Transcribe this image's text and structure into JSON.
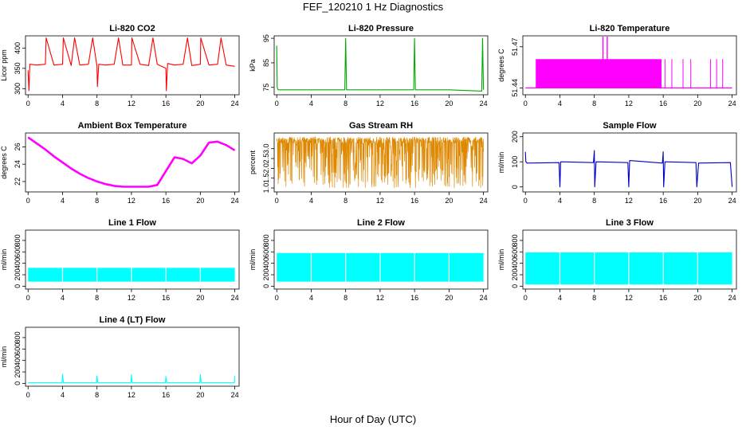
{
  "figure": {
    "title": "FEF_120210  1 Hz Diagnostics",
    "xlabel": "Hour of Day (UTC)"
  },
  "chart_data": [
    {
      "type": "line",
      "title": "Li-820 CO2",
      "ylabel": "Licor ppm",
      "color": "#ff0000",
      "pattern": "spiky",
      "x_ticks": [
        0,
        4,
        8,
        12,
        16,
        20,
        24
      ],
      "y_ticks": [
        "300",
        "350",
        "400"
      ],
      "y_tick_values": [
        300,
        350,
        400
      ],
      "xlim": [
        -0.3,
        24.5
      ],
      "ylim": [
        285,
        430
      ],
      "x": [
        0,
        0.1,
        0.2,
        1,
        2,
        2.1,
        3,
        4,
        4.1,
        5,
        5.4,
        6,
        7,
        7.5,
        8,
        8.05,
        8.2,
        9,
        10,
        10.5,
        11,
        12,
        12.05,
        13,
        14,
        14.5,
        15,
        16,
        16.05,
        16.2,
        17,
        18,
        18.5,
        19,
        20,
        20.05,
        21,
        22,
        22.4,
        23,
        24
      ],
      "y": [
        345,
        295,
        360,
        358,
        360,
        425,
        358,
        360,
        425,
        357,
        425,
        358,
        360,
        425,
        355,
        305,
        360,
        358,
        360,
        425,
        358,
        358,
        425,
        360,
        357,
        425,
        360,
        350,
        295,
        362,
        358,
        360,
        425,
        357,
        360,
        425,
        358,
        360,
        425,
        358,
        355
      ]
    },
    {
      "type": "line",
      "title": "Li-820 Pressure",
      "ylabel": "kPa",
      "color": "#00aa00",
      "pattern": "spiky",
      "x_ticks": [
        0,
        4,
        8,
        12,
        16,
        20,
        24
      ],
      "y_ticks": [
        "75",
        "85",
        "95"
      ],
      "y_tick_values": [
        75,
        85,
        95
      ],
      "xlim": [
        -0.3,
        24.5
      ],
      "ylim": [
        72,
        96
      ],
      "x": [
        0,
        0.05,
        0.15,
        1,
        4,
        7.9,
        8,
        8.1,
        10,
        12,
        15.9,
        16,
        16.1,
        18,
        20,
        23.8,
        23.9,
        24
      ],
      "y": [
        92,
        75,
        74,
        74,
        74,
        74,
        95,
        74,
        74,
        74,
        74,
        95,
        74,
        74,
        74,
        73.5,
        95,
        74
      ]
    },
    {
      "type": "line",
      "title": "Li-820 Temperature",
      "ylabel": "degrees C",
      "color": "#ff00ff",
      "pattern": "band",
      "x_ticks": [
        0,
        4,
        8,
        12,
        16,
        20,
        24
      ],
      "y_ticks": [
        "51.44",
        "51.47"
      ],
      "y_tick_values": [
        51.44,
        51.47
      ],
      "xlim": [
        -0.3,
        24.5
      ],
      "ylim": [
        51.435,
        51.478
      ],
      "band_start": 1.2,
      "band_end": 15.8,
      "band_low": 51.44,
      "band_high": 51.461,
      "spikes_x": [
        9.0,
        9.5
      ],
      "spikes_y": 51.478,
      "x": [
        0,
        1.2,
        15.8,
        24
      ],
      "y": [
        51.44,
        51.461,
        51.461,
        51.44
      ]
    },
    {
      "type": "line",
      "title": "Ambient Box Temperature",
      "ylabel": "degrees C",
      "color": "#ff00ff",
      "pattern": "thick",
      "x_ticks": [
        0,
        4,
        8,
        12,
        16,
        20,
        24
      ],
      "y_ticks": [
        "22",
        "24",
        "26"
      ],
      "y_tick_values": [
        22,
        24,
        26
      ],
      "xlim": [
        -0.3,
        24.5
      ],
      "ylim": [
        20.8,
        27.6
      ],
      "x": [
        0,
        1,
        2,
        3,
        4,
        5,
        6,
        7,
        8,
        9,
        10,
        11,
        12,
        13,
        14,
        15,
        16,
        17,
        18,
        19,
        20,
        21,
        22,
        23,
        24
      ],
      "y": [
        27.1,
        26.4,
        25.7,
        24.9,
        24.2,
        23.5,
        22.9,
        22.4,
        22.0,
        21.7,
        21.5,
        21.4,
        21.4,
        21.4,
        21.4,
        21.6,
        23.2,
        24.8,
        24.6,
        24.1,
        25.0,
        26.5,
        26.6,
        26.2,
        25.6
      ]
    },
    {
      "type": "line",
      "title": "Gas Stream RH",
      "ylabel": "percent",
      "color": "#dd8800",
      "pattern": "noise",
      "noise_low": 1.0,
      "noise_high": 3.6,
      "x_ticks": [
        0,
        4,
        8,
        12,
        16,
        20,
        24
      ],
      "y_ticks": [
        "1.0",
        "1.5",
        "2.0",
        "2.5",
        "3.0"
      ],
      "y_tick_values": [
        1.0,
        1.5,
        2.0,
        2.5,
        3.0
      ],
      "xlim": [
        -0.3,
        24.5
      ],
      "ylim": [
        0.8,
        3.8
      ],
      "x": [
        0,
        24
      ],
      "y": [
        3.5,
        3.5
      ]
    },
    {
      "type": "line",
      "title": "Sample Flow",
      "ylabel": "ml/min",
      "color": "#0000cc",
      "pattern": "spiky",
      "x_ticks": [
        0,
        4,
        8,
        12,
        16,
        20,
        24
      ],
      "y_ticks": [
        "0",
        "100",
        "200"
      ],
      "y_tick_values": [
        0,
        100,
        200
      ],
      "xlim": [
        -0.3,
        24.5
      ],
      "ylim": [
        -20,
        215
      ],
      "x": [
        0,
        0.05,
        0.2,
        3.9,
        4,
        4.1,
        7.9,
        8,
        8.05,
        8.2,
        11.9,
        12,
        12.1,
        15.9,
        16,
        16.05,
        16.2,
        19.8,
        19.9,
        20.1,
        23.8,
        24
      ],
      "y": [
        140,
        100,
        95,
        97,
        0,
        100,
        97,
        145,
        0,
        100,
        97,
        0,
        105,
        95,
        140,
        0,
        100,
        97,
        0,
        95,
        97,
        0
      ]
    },
    {
      "type": "area",
      "title": "Line 1 Flow",
      "ylabel": "ml/min",
      "color": "#00ffff",
      "pattern": "band",
      "x_ticks": [
        0,
        4,
        8,
        12,
        16,
        20,
        24
      ],
      "y_ticks": [
        "0",
        "200",
        "400",
        "600",
        "800"
      ],
      "y_tick_values": [
        0,
        200,
        400,
        600,
        800
      ],
      "xlim": [
        -0.3,
        24.5
      ],
      "ylim": [
        -50,
        980
      ],
      "band_start": 0,
      "band_end": 24,
      "band_low": 80,
      "band_high": 320,
      "gaps": [
        4,
        8,
        12,
        16,
        20
      ],
      "x": [
        0,
        24
      ],
      "y": [
        320,
        320
      ]
    },
    {
      "type": "area",
      "title": "Line 2 Flow",
      "ylabel": "ml/min",
      "color": "#00ffff",
      "pattern": "band",
      "x_ticks": [
        0,
        4,
        8,
        12,
        16,
        20,
        24
      ],
      "y_ticks": [
        "0",
        "200",
        "400",
        "600",
        "800"
      ],
      "y_tick_values": [
        0,
        200,
        400,
        600,
        800
      ],
      "xlim": [
        -0.3,
        24.5
      ],
      "ylim": [
        -50,
        980
      ],
      "band_start": 0,
      "band_end": 24,
      "band_low": 80,
      "band_high": 580,
      "gaps": [
        4,
        8,
        12,
        16,
        20
      ],
      "x": [
        0,
        24
      ],
      "y": [
        580,
        580
      ]
    },
    {
      "type": "area",
      "title": "Line 3 Flow",
      "ylabel": "ml/min",
      "color": "#00ffff",
      "pattern": "band",
      "x_ticks": [
        0,
        4,
        8,
        12,
        16,
        20,
        24
      ],
      "y_ticks": [
        "0",
        "200",
        "400",
        "600",
        "800"
      ],
      "y_tick_values": [
        0,
        200,
        400,
        600,
        800
      ],
      "xlim": [
        -0.3,
        24.5
      ],
      "ylim": [
        -50,
        980
      ],
      "band_start": 0,
      "band_end": 24,
      "band_low": 30,
      "band_high": 590,
      "gaps": [
        4,
        8,
        12,
        16,
        20
      ],
      "x": [
        0,
        24
      ],
      "y": [
        590,
        590
      ]
    },
    {
      "type": "line",
      "title": "Line 4 (LT) Flow",
      "ylabel": "ml/min",
      "color": "#00ffff",
      "pattern": "spiky",
      "x_ticks": [
        0,
        4,
        8,
        12,
        16,
        20,
        24
      ],
      "y_ticks": [
        "0",
        "200",
        "400",
        "600",
        "800"
      ],
      "y_tick_values": [
        0,
        200,
        400,
        600,
        800
      ],
      "xlim": [
        -0.3,
        24.5
      ],
      "ylim": [
        -50,
        980
      ],
      "x": [
        0,
        3.95,
        4,
        4.1,
        7.95,
        8,
        8.1,
        11.95,
        12,
        12.1,
        15.95,
        16,
        16.1,
        19.95,
        20,
        20.1,
        23.95,
        24
      ],
      "y": [
        10,
        10,
        160,
        10,
        10,
        130,
        10,
        10,
        150,
        10,
        10,
        120,
        10,
        10,
        150,
        10,
        10,
        130
      ]
    }
  ]
}
